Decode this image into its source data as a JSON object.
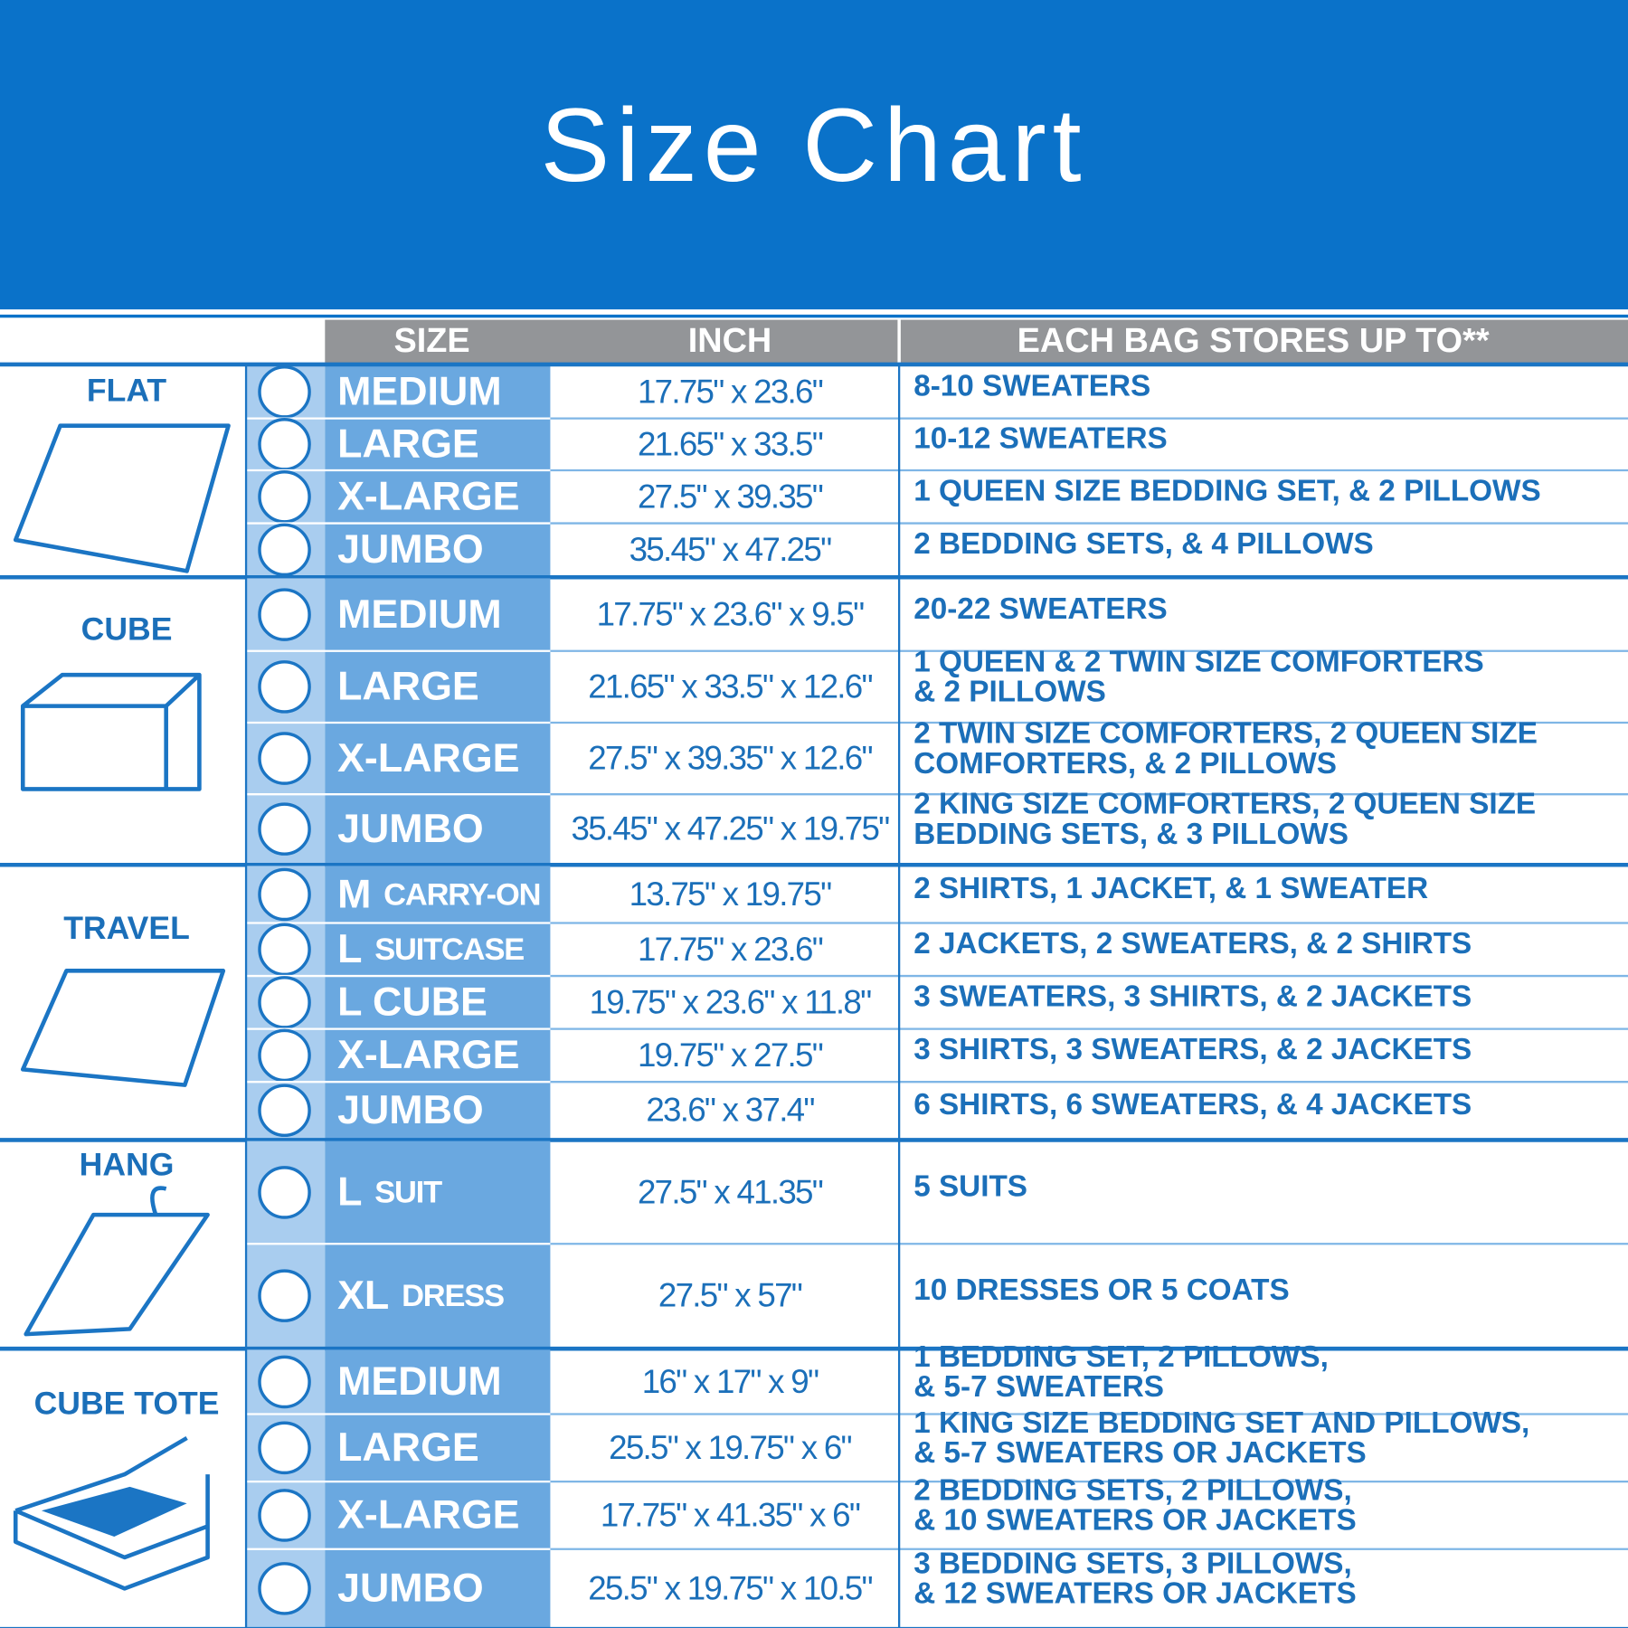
{
  "header": {
    "title": "Size Chart"
  },
  "table": {
    "columns": [
      "SIZE",
      "INCH",
      "EACH BAG STORES UP TO**"
    ],
    "groups": [
      {
        "label": "FLAT",
        "rows": [
          {
            "size": "MEDIUM",
            "inch": "17.75\" x 23.6\"",
            "stores": [
              "8-10 SWEATERS"
            ]
          },
          {
            "size": "LARGE",
            "inch": "21.65\" x 33.5\"",
            "stores": [
              "10-12 SWEATERS"
            ]
          },
          {
            "size": "X-LARGE",
            "inch": "27.5\" x 39.35\"",
            "stores": [
              "1 QUEEN SIZE BEDDING SET, & 2 PILLOWS"
            ]
          },
          {
            "size": "JUMBO",
            "inch": "35.45\" x 47.25\"",
            "stores": [
              "2 BEDDING SETS, & 4 PILLOWS"
            ]
          }
        ]
      },
      {
        "label": "CUBE",
        "rows": [
          {
            "size": "MEDIUM",
            "inch": "17.75\" x 23.6\" x 9.5\"",
            "stores": [
              "20-22 SWEATERS"
            ]
          },
          {
            "size": "LARGE",
            "inch": "21.65\" x 33.5\" x 12.6\"",
            "stores": [
              "1 QUEEN & 2 TWIN SIZE COMFORTERS",
              "& 2 PILLOWS"
            ]
          },
          {
            "size": "X-LARGE",
            "inch": "27.5\" x 39.35\" x 12.6\"",
            "stores": [
              "2 TWIN SIZE COMFORTERS, 2 QUEEN SIZE",
              "COMFORTERS, & 2 PILLOWS"
            ]
          },
          {
            "size": "JUMBO",
            "inch": "35.45\" x 47.25\" x 19.75\"",
            "stores": [
              "2 KING SIZE COMFORTERS, 2 QUEEN SIZE",
              "BEDDING SETS, & 3 PILLOWS"
            ]
          }
        ]
      },
      {
        "label": "TRAVEL",
        "rows": [
          {
            "size": "M",
            "note": "CARRY-ON",
            "inch": "13.75\" x 19.75\"",
            "stores": [
              "2 SHIRTS, 1 JACKET, & 1 SWEATER"
            ]
          },
          {
            "size": "L",
            "note": "SUITCASE",
            "inch": "17.75\" x 23.6\"",
            "stores": [
              "2 JACKETS, 2 SWEATERS, & 2 SHIRTS"
            ]
          },
          {
            "size": "L CUBE",
            "inch": "19.75\" x 23.6\" x 11.8\"",
            "stores": [
              "3 SWEATERS, 3 SHIRTS, & 2 JACKETS"
            ]
          },
          {
            "size": "X-LARGE",
            "inch": "19.75\" x 27.5\"",
            "stores": [
              "3 SHIRTS, 3 SWEATERS, & 2 JACKETS"
            ]
          },
          {
            "size": "JUMBO",
            "inch": "23.6\" x 37.4\"",
            "stores": [
              "6 SHIRTS, 6 SWEATERS, & 4 JACKETS"
            ]
          }
        ]
      },
      {
        "label": "HANG",
        "rows": [
          {
            "size": "L",
            "note": "SUIT",
            "inch": "27.5\" x 41.35\"",
            "stores": [
              "5 SUITS"
            ]
          },
          {
            "size": "XL",
            "note": "DRESS",
            "inch": "27.5\" x 57\"",
            "stores": [
              "10 DRESSES OR 5 COATS"
            ]
          }
        ]
      },
      {
        "label": "CUBE TOTE",
        "rows": [
          {
            "size": "MEDIUM",
            "inch": "16\" x 17\" x 9\"",
            "stores": [
              "1 BEDDING SET, 2 PILLOWS,",
              "& 5-7 SWEATERS"
            ]
          },
          {
            "size": "LARGE",
            "inch": "25.5\" x 19.75\" x 6\"",
            "stores": [
              "1 KING SIZE BEDDING SET AND PILLOWS,",
              "& 5-7 SWEATERS OR JACKETS"
            ]
          },
          {
            "size": "X-LARGE",
            "inch": "17.75\" x 41.35\" x 6\"",
            "stores": [
              "2 BEDDING SETS, 2 PILLOWS,",
              "& 10 SWEATERS OR JACKETS"
            ]
          },
          {
            "size": "JUMBO",
            "inch": "25.5\" x 19.75\" x 10.5\"",
            "stores": [
              "3 BEDDING SETS, 3 PILLOWS,",
              "& 12 SWEATERS OR JACKETS"
            ]
          }
        ]
      }
    ]
  }
}
